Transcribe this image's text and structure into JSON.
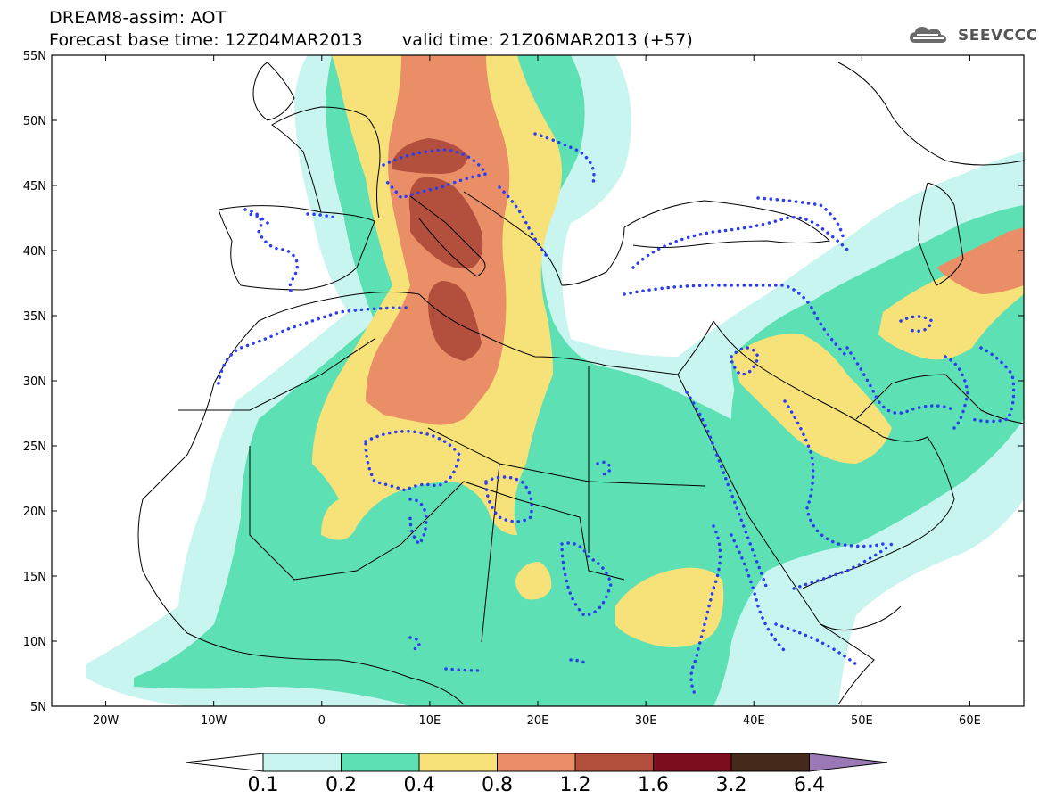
{
  "title": {
    "line1": "DREAM8-assim: AOT",
    "base_time": "Forecast base time: 12Z04MAR2013",
    "valid_time": "valid time: 21Z06MAR2013 (+57)"
  },
  "logo": {
    "text": "SEEVCCC",
    "icon": "cloud-logo-icon"
  },
  "axes": {
    "lon_range": [
      -25,
      65
    ],
    "lat_range": [
      5,
      55
    ],
    "lat_ticks": [
      "5N",
      "10N",
      "15N",
      "20N",
      "25N",
      "30N",
      "35N",
      "40N",
      "45N",
      "50N",
      "55N"
    ],
    "lon_ticks": [
      "20W",
      "10W",
      "0",
      "10E",
      "20E",
      "30E",
      "40E",
      "50E",
      "60E"
    ]
  },
  "colorbar": {
    "labels": [
      "0.1",
      "0.2",
      "0.4",
      "0.8",
      "1.2",
      "1.6",
      "3.2",
      "6.4"
    ],
    "colors": [
      "#ffffff",
      "#c8f5ef",
      "#5de0b3",
      "#f7e27a",
      "#ea8e67",
      "#b24f3d",
      "#7c0d1f",
      "#45291a",
      "#9978b5"
    ]
  },
  "contour_color": "#2d3ef0",
  "coastline_color": "#000000"
}
